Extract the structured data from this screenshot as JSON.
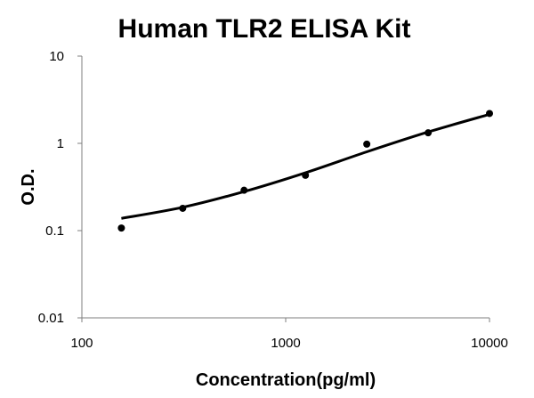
{
  "chart_data": {
    "type": "scatter",
    "title": "Human TLR2 ELISA Kit",
    "xlabel": "Concentration(pg/ml)",
    "ylabel": "O.D.",
    "x_scale": "log",
    "y_scale": "log",
    "xlim": [
      100,
      10000
    ],
    "ylim": [
      0.01,
      10
    ],
    "x_ticks": [
      "100",
      "1000",
      "10000"
    ],
    "y_ticks": [
      "0.01",
      "0.1",
      "1",
      "10"
    ],
    "grid": false,
    "legend": "none",
    "series": [
      {
        "points": [
          {
            "x": 156.25,
            "y": 0.107
          },
          {
            "x": 312.5,
            "y": 0.18
          },
          {
            "x": 625,
            "y": 0.29
          },
          {
            "x": 1250,
            "y": 0.43
          },
          {
            "x": 2500,
            "y": 0.98
          },
          {
            "x": 5000,
            "y": 1.32
          },
          {
            "x": 10000,
            "y": 2.2
          }
        ]
      }
    ],
    "fit_curve": [
      {
        "x": 156.25,
        "y": 0.138
      },
      {
        "x": 312.5,
        "y": 0.185
      },
      {
        "x": 625,
        "y": 0.28
      },
      {
        "x": 1250,
        "y": 0.46
      },
      {
        "x": 2500,
        "y": 0.8
      },
      {
        "x": 5000,
        "y": 1.35
      },
      {
        "x": 10000,
        "y": 2.15
      }
    ]
  }
}
